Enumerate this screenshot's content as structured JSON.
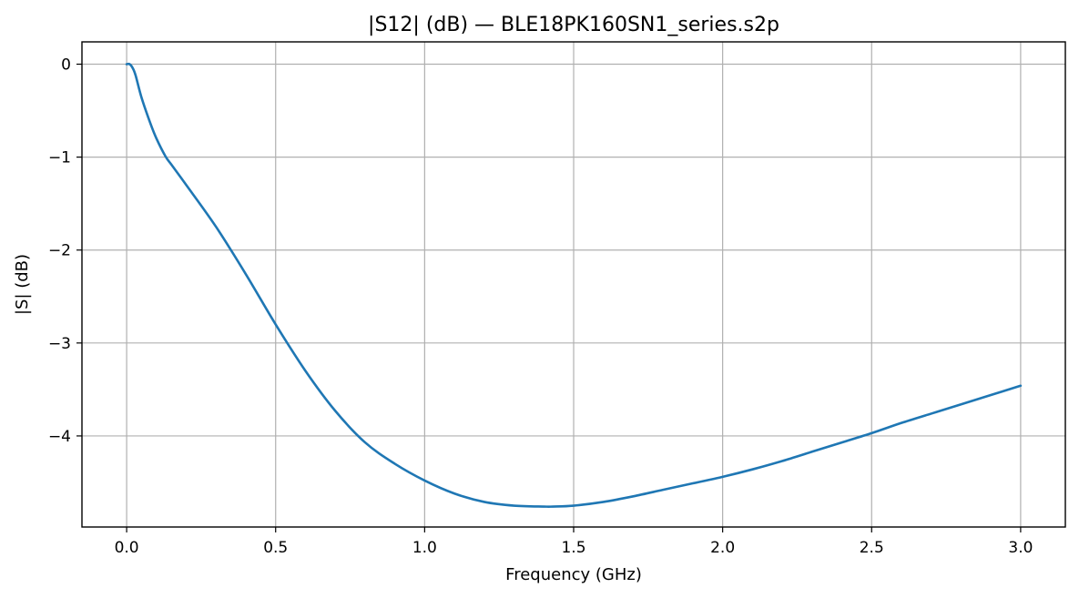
{
  "chart_data": {
    "type": "line",
    "title": "|S12| (dB) — BLE18PK160SN1_series.s2p",
    "xlabel": "Frequency (GHz)",
    "ylabel": "|S| (dB)",
    "xlim": [
      -0.15,
      3.15
    ],
    "ylim": [
      -4.98,
      0.24
    ],
    "grid": true,
    "x_ticks": [
      0.0,
      0.5,
      1.0,
      1.5,
      2.0,
      2.5,
      3.0
    ],
    "x_tick_labels": [
      "0.0",
      "0.5",
      "1.0",
      "1.5",
      "2.0",
      "2.5",
      "3.0"
    ],
    "y_ticks": [
      0,
      -1,
      -2,
      -3,
      -4
    ],
    "y_tick_labels": [
      "0",
      "−1",
      "−2",
      "−3",
      "−4"
    ],
    "colors": {
      "series": "#1f77b4"
    },
    "series": [
      {
        "x": [
          0.0,
          0.01,
          0.02,
          0.03,
          0.05,
          0.08,
          0.1,
          0.13,
          0.15,
          0.2,
          0.3,
          0.4,
          0.5,
          0.6,
          0.7,
          0.8,
          0.9,
          1.0,
          1.1,
          1.2,
          1.3,
          1.4,
          1.43,
          1.5,
          1.6,
          1.7,
          1.8,
          1.9,
          2.0,
          2.1,
          2.2,
          2.3,
          2.4,
          2.5,
          2.6,
          2.7,
          2.8,
          2.9,
          3.0
        ],
        "y": [
          0.0,
          0.0,
          -0.04,
          -0.12,
          -0.36,
          -0.64,
          -0.8,
          -0.99,
          -1.08,
          -1.3,
          -1.75,
          -2.26,
          -2.8,
          -3.3,
          -3.73,
          -4.07,
          -4.3,
          -4.48,
          -4.62,
          -4.71,
          -4.75,
          -4.76,
          -4.76,
          -4.75,
          -4.71,
          -4.65,
          -4.58,
          -4.51,
          -4.44,
          -4.36,
          -4.27,
          -4.17,
          -4.07,
          -3.97,
          -3.86,
          -3.76,
          -3.66,
          -3.56,
          -3.46
        ]
      }
    ]
  }
}
